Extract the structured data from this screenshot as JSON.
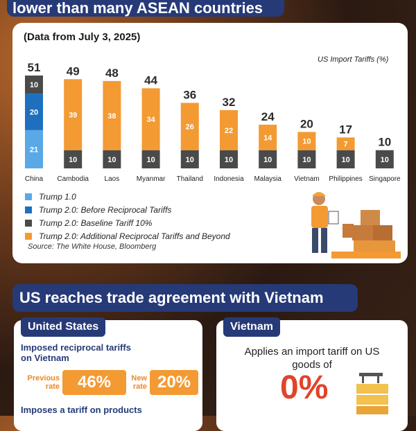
{
  "banner": {
    "title": "lower than many ASEAN countries"
  },
  "chart_card": {
    "subtitle": "(Data from July 3, 2025)",
    "unit_label": "US Import Tariffs (%)",
    "source": "Source: The White House, Bloomberg"
  },
  "chart_data": {
    "type": "bar",
    "stacked": true,
    "categories": [
      "China",
      "Cambodia",
      "Laos",
      "Myanmar",
      "Thailand",
      "Indonesia",
      "Malaysia",
      "Vietnam",
      "Philippines",
      "Singapore"
    ],
    "totals": [
      51,
      49,
      48,
      44,
      36,
      32,
      24,
      20,
      17,
      10
    ],
    "series": [
      {
        "name": "Trump 1.0",
        "color": "#5aa9e6",
        "values": [
          21,
          0,
          0,
          0,
          0,
          0,
          0,
          0,
          0,
          0
        ]
      },
      {
        "name": "Trump 2.0: Before Reciprocal Tariffs",
        "color": "#1f6fbf",
        "values": [
          20,
          0,
          0,
          0,
          0,
          0,
          0,
          0,
          0,
          0
        ]
      },
      {
        "name": "Trump 2.0: Baseline Tariff 10%",
        "color": "#4a4a4a",
        "values": [
          10,
          10,
          10,
          10,
          10,
          10,
          10,
          10,
          10,
          10
        ]
      },
      {
        "name": "Trump 2.0: Additional Reciprocal Tariffs and Beyond",
        "color": "#f39a33",
        "values": [
          0,
          39,
          38,
          34,
          26,
          22,
          14,
          10,
          7,
          0
        ]
      }
    ],
    "stack_order_bottom_to_top": [
      "Trump 2.0: Baseline Tariff 10%",
      "Trump 2.0: Additional Reciprocal Tariffs and Beyond"
    ],
    "china_stack_order_bottom_to_top": [
      "Trump 1.0",
      "Trump 2.0: Before Reciprocal Tariffs",
      "Trump 2.0: Baseline Tariff 10%"
    ],
    "ylim": [
      0,
      51
    ],
    "grid": false,
    "legend_position": "bottom-left"
  },
  "section2": {
    "title": "US reaches trade agreement with Vietnam",
    "us": {
      "tag": "United States",
      "line1": "Imposed reciprocal tariffs on Vietnam",
      "previous_label": "Previous rate",
      "previous_value": "46%",
      "new_label": "New rate",
      "new_value": "20%",
      "line2": "Imposes a tariff on products"
    },
    "vn": {
      "tag": "Vietnam",
      "text": "Applies an import tariff on US goods of",
      "value": "0%"
    }
  }
}
